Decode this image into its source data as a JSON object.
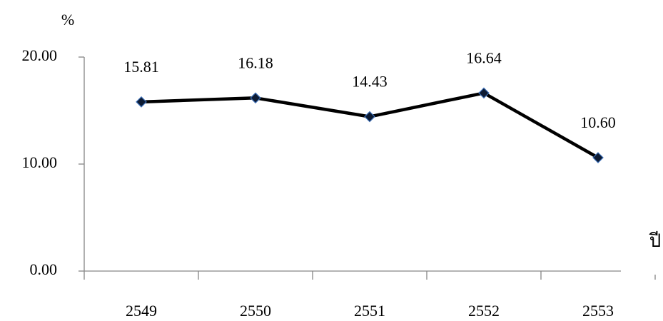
{
  "chart_data": {
    "type": "line",
    "y_label": "%",
    "x_label": "ปี",
    "categories": [
      "2549",
      "2550",
      "2551",
      "2552",
      "2553"
    ],
    "values": [
      15.81,
      16.18,
      14.43,
      16.64,
      10.6
    ],
    "value_labels": [
      "15.81",
      "16.18",
      "14.43",
      "16.64",
      "10.60"
    ],
    "color": "#000000",
    "marker_color": "#0d1b33",
    "marker_edge_color": "#3a6db5",
    "ylim": [
      0,
      20
    ],
    "yticks": [
      {
        "value": 0,
        "label": "0.00"
      },
      {
        "value": 10,
        "label": "10.00"
      },
      {
        "value": 20,
        "label": "20.00"
      }
    ],
    "grid": false
  }
}
